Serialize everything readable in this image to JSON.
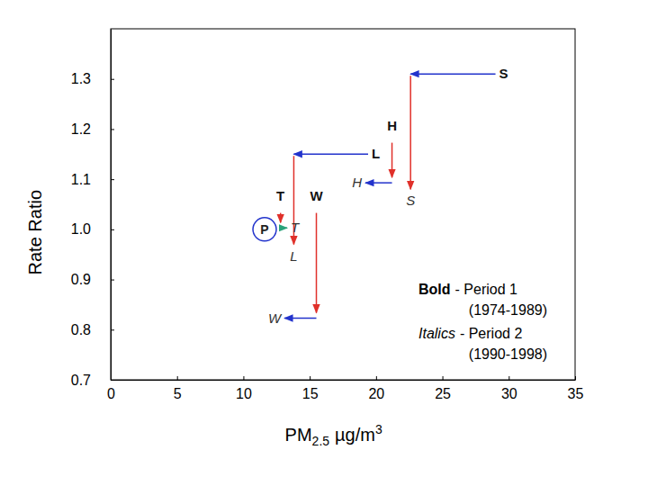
{
  "chart_data": {
    "type": "arrow",
    "x_label": [
      "PM",
      "2.5",
      "µg/m",
      "3"
    ],
    "y_label": "Rate Ratio",
    "xlim": [
      0,
      35
    ],
    "xticks": [
      0,
      5,
      10,
      15,
      20,
      25,
      30,
      35
    ],
    "ylim": [
      0.7,
      1.4
    ],
    "yticks": [
      0.7,
      0.8,
      0.9,
      {
        "value": 1.0,
        "label": "1.0"
      },
      1.1,
      1.2,
      1.3
    ],
    "annotations": [
      "Bold",
      "- Period 1",
      "(1974-1989)",
      "Italics",
      "- Period 2",
      "(1990-1998)"
    ],
    "series": [
      {
        "name": "S",
        "x": [
          29.0,
          22.6
        ],
        "values": [
          1.31,
          1.08
        ],
        "colors": [
          "#2233cc",
          "#e0302a"
        ]
      },
      {
        "name": "H",
        "x": [
          21.2,
          19.2
        ],
        "values": [
          1.18,
          1.1
        ],
        "colors": [
          "#2233cc",
          "#e0302a"
        ]
      },
      {
        "name": "L",
        "x": [
          19.4,
          13.8
        ],
        "values": [
          1.15,
          0.97
        ],
        "colors": [
          "#2233cc",
          "#e0302a"
        ]
      },
      {
        "name": "W",
        "x": [
          15.5,
          13.1
        ],
        "values": [
          1.04,
          0.83
        ],
        "colors": [
          "#2233cc",
          "#e0302a"
        ]
      },
      {
        "name": "T",
        "x": [
          12.8,
          13.3
        ],
        "values": [
          1.04,
          1.01
        ],
        "colors": [
          "#2aa37a",
          "#e0302a"
        ]
      },
      {
        "name": "P",
        "x": [
          11.6
        ],
        "values": [
          1.0
        ],
        "color": "#2233cc",
        "marker": "circle"
      }
    ]
  }
}
